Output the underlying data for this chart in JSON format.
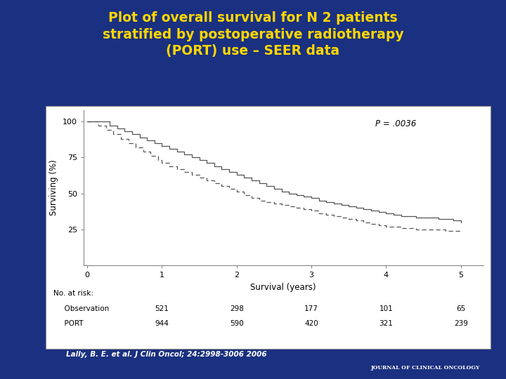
{
  "title": "Plot of overall survival for N 2 patients\nstratified by postoperative radiotherapy\n(PORT) use – SEER data",
  "title_color": "#FFD700",
  "background_color": "#1a3080",
  "plot_bg_color": "#ffffff",
  "white_box_color": "#f0f0f0",
  "xlabel": "Survival (years)",
  "ylabel": "Surviving (%)",
  "xlim": [
    -0.05,
    5.3
  ],
  "ylim": [
    0,
    108
  ],
  "xticks": [
    0,
    1,
    2,
    3,
    4,
    5
  ],
  "yticks": [
    25,
    50,
    75,
    100
  ],
  "p_value_text": "P = .0036",
  "citation": "Lally, B. E. et al. J Clin Oncol; 24:2998-3006 2006",
  "jco_label": "JOURNAL OF CLINICAL ONCOLOGY",
  "at_risk_label": "No. at risk:",
  "obs_label": "  Observation",
  "port_label": "  PORT",
  "obs_at_risk": [
    521,
    298,
    177,
    101,
    65
  ],
  "port_at_risk": [
    944,
    590,
    420,
    321,
    239
  ],
  "obs_x": [
    0.0,
    0.3,
    0.4,
    0.5,
    0.6,
    0.7,
    0.8,
    0.9,
    1.0,
    1.1,
    1.2,
    1.3,
    1.4,
    1.5,
    1.6,
    1.7,
    1.8,
    1.9,
    2.0,
    2.1,
    2.2,
    2.3,
    2.4,
    2.5,
    2.6,
    2.7,
    2.8,
    2.9,
    3.0,
    3.1,
    3.2,
    3.3,
    3.4,
    3.5,
    3.6,
    3.7,
    3.8,
    3.9,
    4.0,
    4.1,
    4.2,
    4.3,
    4.4,
    4.5,
    4.6,
    4.7,
    4.8,
    4.9,
    5.0
  ],
  "obs_y": [
    100,
    97,
    95,
    93,
    91,
    89,
    87,
    85,
    83,
    81,
    79,
    77,
    75,
    73,
    71,
    69,
    67,
    65,
    63,
    61,
    59,
    57,
    55,
    53,
    51,
    50,
    49,
    48,
    47,
    45,
    44,
    43,
    42,
    41,
    40,
    39,
    38,
    37,
    36,
    35,
    34,
    34,
    33,
    33,
    33,
    32,
    32,
    31,
    30
  ],
  "port_x": [
    0.0,
    0.15,
    0.25,
    0.35,
    0.45,
    0.55,
    0.65,
    0.75,
    0.85,
    0.95,
    1.0,
    1.1,
    1.2,
    1.3,
    1.4,
    1.5,
    1.6,
    1.7,
    1.8,
    1.9,
    2.0,
    2.1,
    2.2,
    2.3,
    2.4,
    2.5,
    2.6,
    2.7,
    2.8,
    2.9,
    3.0,
    3.1,
    3.2,
    3.3,
    3.4,
    3.5,
    3.6,
    3.7,
    3.8,
    3.9,
    4.0,
    4.1,
    4.2,
    4.3,
    4.4,
    4.5,
    4.6,
    4.7,
    4.8,
    4.9,
    5.0
  ],
  "port_y": [
    100,
    97,
    94,
    91,
    88,
    85,
    82,
    79,
    76,
    73,
    71,
    69,
    67,
    65,
    63,
    61,
    59,
    57,
    55,
    53,
    51,
    49,
    47,
    45,
    44,
    43,
    42,
    41,
    40,
    39,
    38,
    36,
    35,
    34,
    33,
    32,
    31,
    30,
    29,
    28,
    27,
    27,
    26,
    26,
    25,
    25,
    25,
    25,
    24,
    24,
    24
  ]
}
